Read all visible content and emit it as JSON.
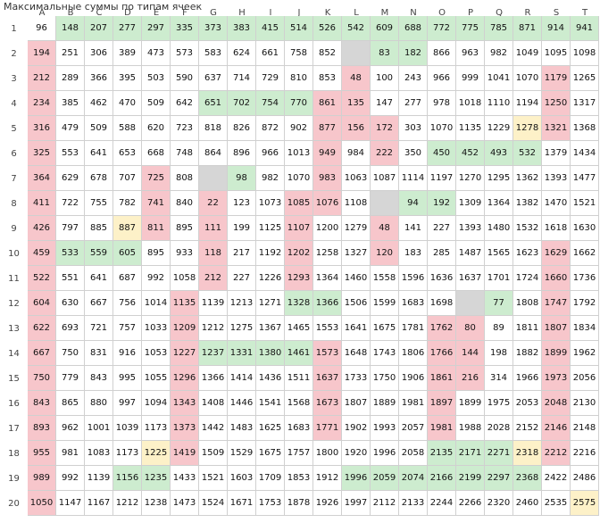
{
  "title": "Максимальные суммы по типам ячеек",
  "columns": [
    "A",
    "B",
    "C",
    "D",
    "E",
    "F",
    "G",
    "H",
    "I",
    "J",
    "K",
    "L",
    "M",
    "N",
    "O",
    "P",
    "Q",
    "R",
    "S",
    "T"
  ],
  "row_labels": [
    1,
    2,
    3,
    4,
    5,
    6,
    7,
    8,
    9,
    10,
    11,
    12,
    13,
    14,
    15,
    16,
    17,
    18,
    19,
    20
  ],
  "fill_colors": {
    "w": "#ffffff",
    "g": "#cdeccf",
    "r": "#f7c6cb",
    "y": "#fdf1c8",
    "x": "#d6d6d6"
  },
  "fills": [
    "wggggggggggggggggggg",
    "rwwwwwwwwwwxggwwwwww",
    "rwwwwwwwwwwrwwwwwwrw",
    "rwwwwwggggrrwwwwwwrw",
    "rwwwwwwwwwrrrwwwwyrw",
    "rwwwwwwwwwrwrwggggww",
    "rwwwrwxgwwrwwwwwwwww",
    "rwwwrwrwwrrwxggwwwww",
    "rwwyrwrwwrwwrwwwwwww",
    "rgggwwrwwrwwrwwwwwrw",
    "rwwwwwrwwrwwwwwwwwrw",
    "rwwwwrwwwggwwwwxgwrw",
    "rwwwwrwwwwwwwwrrwwrw",
    "rwwwwrggggrwwwrrwwrw",
    "rwwwwrwwwwrwwwrrwwrw",
    "rwwwwrwwwwrwwwrwwwrw",
    "rwwwwrwwwwrwwwrwwwrw",
    "rwwwyrwwwwwwwwgggyrw",
    "rwwggwwwwwwgggggggww",
    "rwwwwwwwwwwwwwwwwwwy"
  ],
  "rows": [
    [
      96,
      148,
      207,
      277,
      297,
      335,
      373,
      383,
      415,
      514,
      526,
      542,
      609,
      688,
      772,
      775,
      785,
      871,
      914,
      941
    ],
    [
      194,
      251,
      306,
      389,
      473,
      573,
      583,
      624,
      661,
      758,
      852,
      null,
      83,
      182,
      866,
      963,
      982,
      1049,
      1095,
      1098
    ],
    [
      212,
      289,
      366,
      395,
      503,
      590,
      637,
      714,
      729,
      810,
      853,
      48,
      100,
      243,
      966,
      999,
      1041,
      1070,
      1179,
      1265
    ],
    [
      234,
      385,
      462,
      470,
      509,
      642,
      651,
      702,
      754,
      770,
      861,
      135,
      147,
      277,
      978,
      1018,
      1110,
      1194,
      1250,
      1317
    ],
    [
      316,
      479,
      509,
      588,
      620,
      723,
      818,
      826,
      872,
      902,
      877,
      156,
      172,
      303,
      1070,
      1135,
      1229,
      1278,
      1321,
      1368
    ],
    [
      325,
      553,
      641,
      653,
      668,
      748,
      864,
      896,
      966,
      1013,
      949,
      984,
      222,
      350,
      450,
      452,
      493,
      532,
      1379,
      1434
    ],
    [
      364,
      629,
      678,
      707,
      725,
      808,
      null,
      98,
      982,
      1070,
      983,
      1063,
      1087,
      1114,
      1197,
      1270,
      1295,
      1362,
      1393,
      1477
    ],
    [
      411,
      722,
      755,
      782,
      741,
      840,
      22,
      123,
      1073,
      1085,
      1076,
      1108,
      null,
      94,
      192,
      1309,
      1364,
      1382,
      1470,
      1521
    ],
    [
      426,
      797,
      885,
      887,
      811,
      895,
      111,
      199,
      1125,
      1107,
      1200,
      1279,
      48,
      141,
      227,
      1393,
      1480,
      1532,
      1618,
      1630
    ],
    [
      459,
      533,
      559,
      605,
      895,
      933,
      118,
      217,
      1192,
      1202,
      1258,
      1327,
      120,
      183,
      285,
      1487,
      1565,
      1623,
      1629,
      1662
    ],
    [
      522,
      551,
      641,
      687,
      992,
      1058,
      212,
      227,
      1226,
      1293,
      1364,
      1460,
      1558,
      1596,
      1636,
      1637,
      1701,
      1724,
      1660,
      1736
    ],
    [
      604,
      630,
      667,
      756,
      1014,
      1135,
      1139,
      1213,
      1271,
      1328,
      1366,
      1506,
      1599,
      1683,
      1698,
      null,
      77,
      1808,
      1747,
      1792
    ],
    [
      622,
      693,
      721,
      757,
      1033,
      1209,
      1212,
      1275,
      1367,
      1465,
      1553,
      1641,
      1675,
      1781,
      1762,
      80,
      89,
      1811,
      1807,
      1834
    ],
    [
      667,
      750,
      831,
      916,
      1053,
      1227,
      1237,
      1331,
      1380,
      1461,
      1573,
      1648,
      1743,
      1806,
      1766,
      144,
      198,
      1882,
      1899,
      1962
    ],
    [
      750,
      779,
      843,
      995,
      1055,
      1296,
      1366,
      1414,
      1436,
      1511,
      1637,
      1733,
      1750,
      1906,
      1861,
      216,
      314,
      1966,
      1973,
      2056
    ],
    [
      843,
      865,
      880,
      997,
      1094,
      1343,
      1408,
      1446,
      1541,
      1568,
      1673,
      1807,
      1889,
      1981,
      1897,
      1899,
      1975,
      2053,
      2048,
      2130
    ],
    [
      893,
      962,
      1001,
      1039,
      1173,
      1373,
      1442,
      1483,
      1625,
      1683,
      1771,
      1902,
      1993,
      2057,
      1981,
      1988,
      2028,
      2152,
      2146,
      2148
    ],
    [
      955,
      981,
      1083,
      1173,
      1225,
      1419,
      1509,
      1529,
      1675,
      1757,
      1800,
      1920,
      1996,
      2058,
      2135,
      2171,
      2271,
      2318,
      2212,
      2216
    ],
    [
      989,
      992,
      1139,
      1156,
      1235,
      1433,
      1521,
      1603,
      1709,
      1853,
      1912,
      1996,
      2059,
      2074,
      2166,
      2199,
      2297,
      2368,
      2422,
      2486
    ],
    [
      1050,
      1147,
      1167,
      1212,
      1238,
      1473,
      1524,
      1671,
      1753,
      1878,
      1926,
      1997,
      2112,
      2133,
      2244,
      2266,
      2320,
      2460,
      2535,
      2575
    ]
  ]
}
